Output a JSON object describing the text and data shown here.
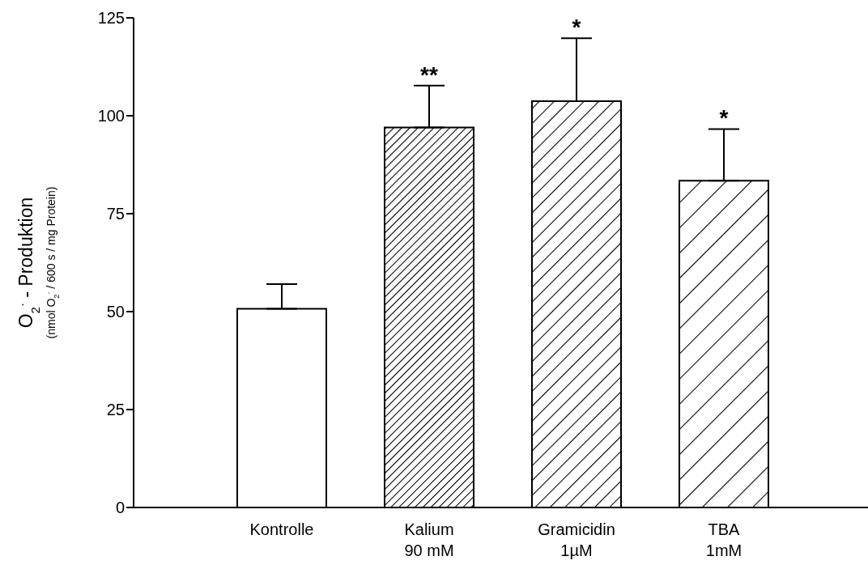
{
  "chart_data": {
    "type": "bar",
    "ylabel": "O$_{2}$$^{·}$ - Produktion",
    "annotations": [
      "(nmol O$_{2}$$^{·}$ /  600 s / mg Protein)",
      "**",
      "*",
      "*"
    ],
    "categories": [
      "Kontrolle",
      "Kalium\n90 mM",
      "Gramicidin\n1µM",
      "TBA\n1mM"
    ],
    "values": [
      50.7,
      97.0,
      103.7,
      83.4
    ],
    "errors": [
      [
        50.7,
        57.0
      ],
      [
        97.0,
        107.7
      ],
      [
        103.7,
        119.8
      ],
      [
        83.4,
        96.6
      ]
    ],
    "ylim": [
      0,
      125
    ],
    "yticks": [
      0,
      25,
      50,
      75,
      100,
      125
    ]
  }
}
